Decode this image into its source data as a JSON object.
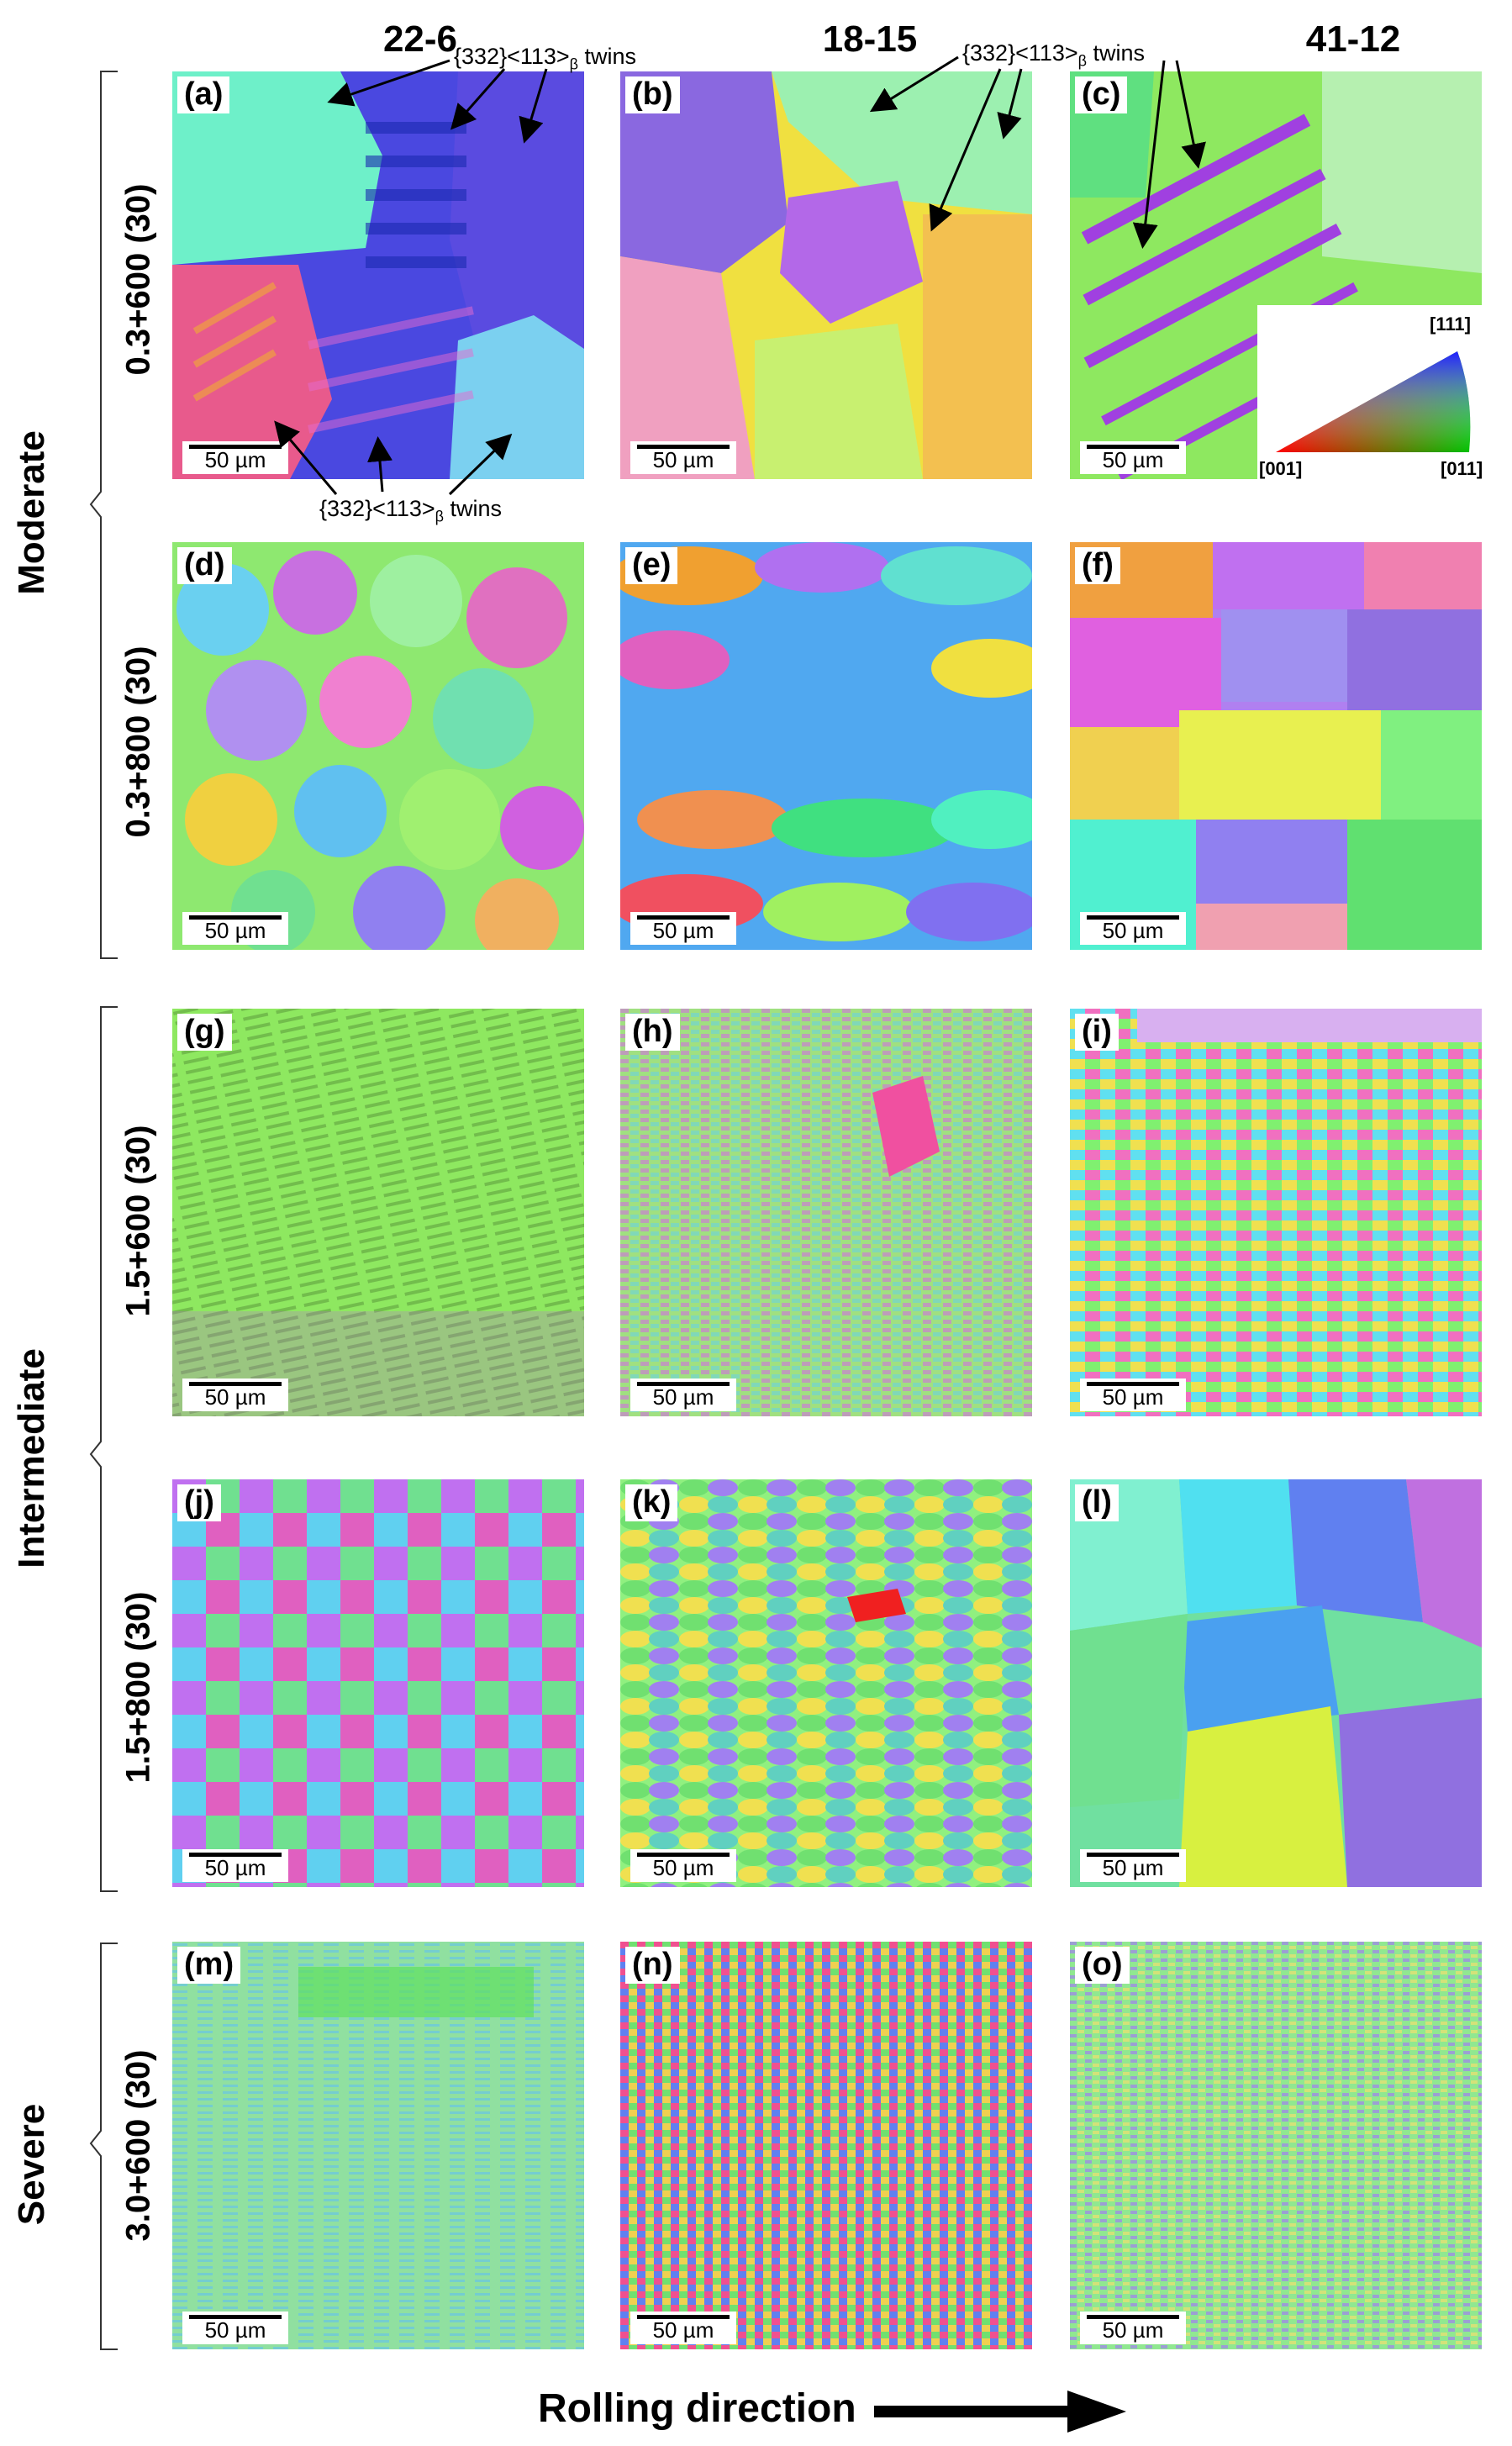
{
  "columns": [
    "22-6",
    "18-15",
    "41-12"
  ],
  "groups": {
    "moderate": "Moderate",
    "intermediate": "Intermediate",
    "severe": "Severe"
  },
  "rows": [
    "0.3+600 (30)",
    "0.3+800 (30)",
    "1.5+600 (30)",
    "1.5+800 (30)",
    "3.0+600 (30)"
  ],
  "panels": [
    "(a)",
    "(b)",
    "(c)",
    "(d)",
    "(e)",
    "(f)",
    "(g)",
    "(h)",
    "(i)",
    "(j)",
    "(k)",
    "(l)",
    "(m)",
    "(n)",
    "(o)"
  ],
  "scale_bar": "50 µm",
  "annotations": {
    "twins_top_left": "{332}<113>",
    "twins_top_right": "{332}<113>",
    "twins_bottom": "{332}<113>",
    "beta": "β",
    "twins_word": "twins"
  },
  "ipf_legend": {
    "top": "[111]",
    "left": "[001]",
    "right": "[011]"
  },
  "footer": "Rolling direction",
  "colors": {
    "ebsd_green": "#7fe05a",
    "ebsd_blue": "#4a3ce0",
    "ebsd_magenta": "#d13ad8",
    "ebsd_cyan": "#5fe3e0"
  }
}
